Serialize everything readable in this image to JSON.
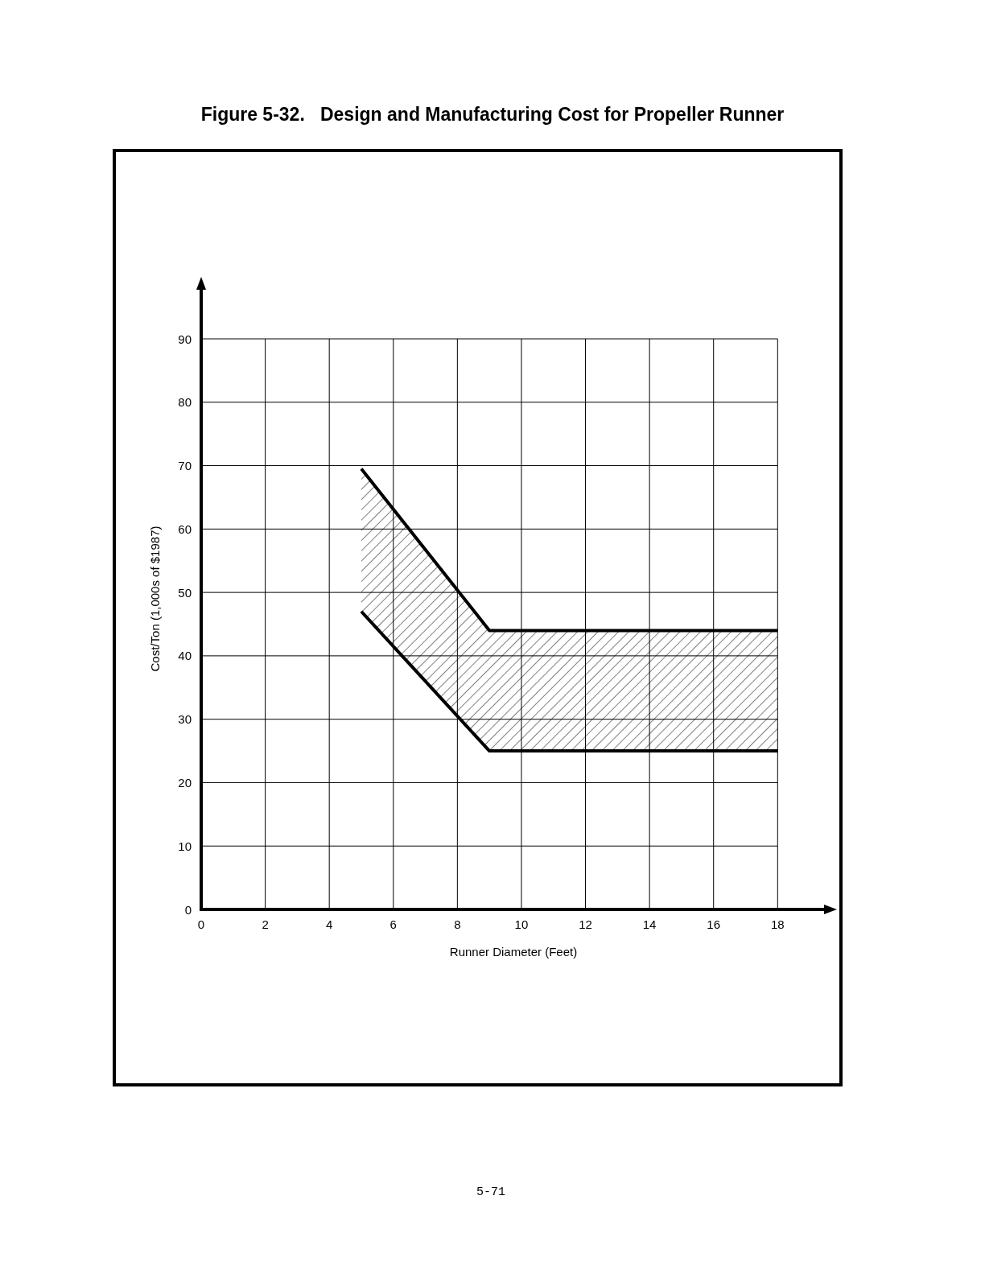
{
  "chart_data": {
    "type": "line",
    "title": "Figure 5-32.   Design and Manufacturing Cost for Propeller Runner",
    "xlabel": "Runner Diameter (Feet)",
    "ylabel": "Cost/Ton (1,000s of $1987)",
    "annotations": [
      "5-71"
    ],
    "x": [
      5,
      9,
      18
    ],
    "xlim": [
      0,
      19.5
    ],
    "ylim": [
      0,
      98
    ],
    "xticks": [
      0,
      2,
      4,
      6,
      8,
      10,
      12,
      14,
      16,
      18
    ],
    "yticks": [
      0,
      10,
      20,
      30,
      40,
      50,
      60,
      70,
      80,
      90
    ],
    "grid": true,
    "series": [
      {
        "color": "#000000",
        "values": [
          69.5,
          44,
          44
        ],
        "lower": [
          47,
          25,
          25
        ],
        "upper": [
          69.5,
          44,
          44
        ]
      },
      {
        "color": "#000000",
        "values": [
          47,
          25,
          25
        ]
      }
    ]
  }
}
